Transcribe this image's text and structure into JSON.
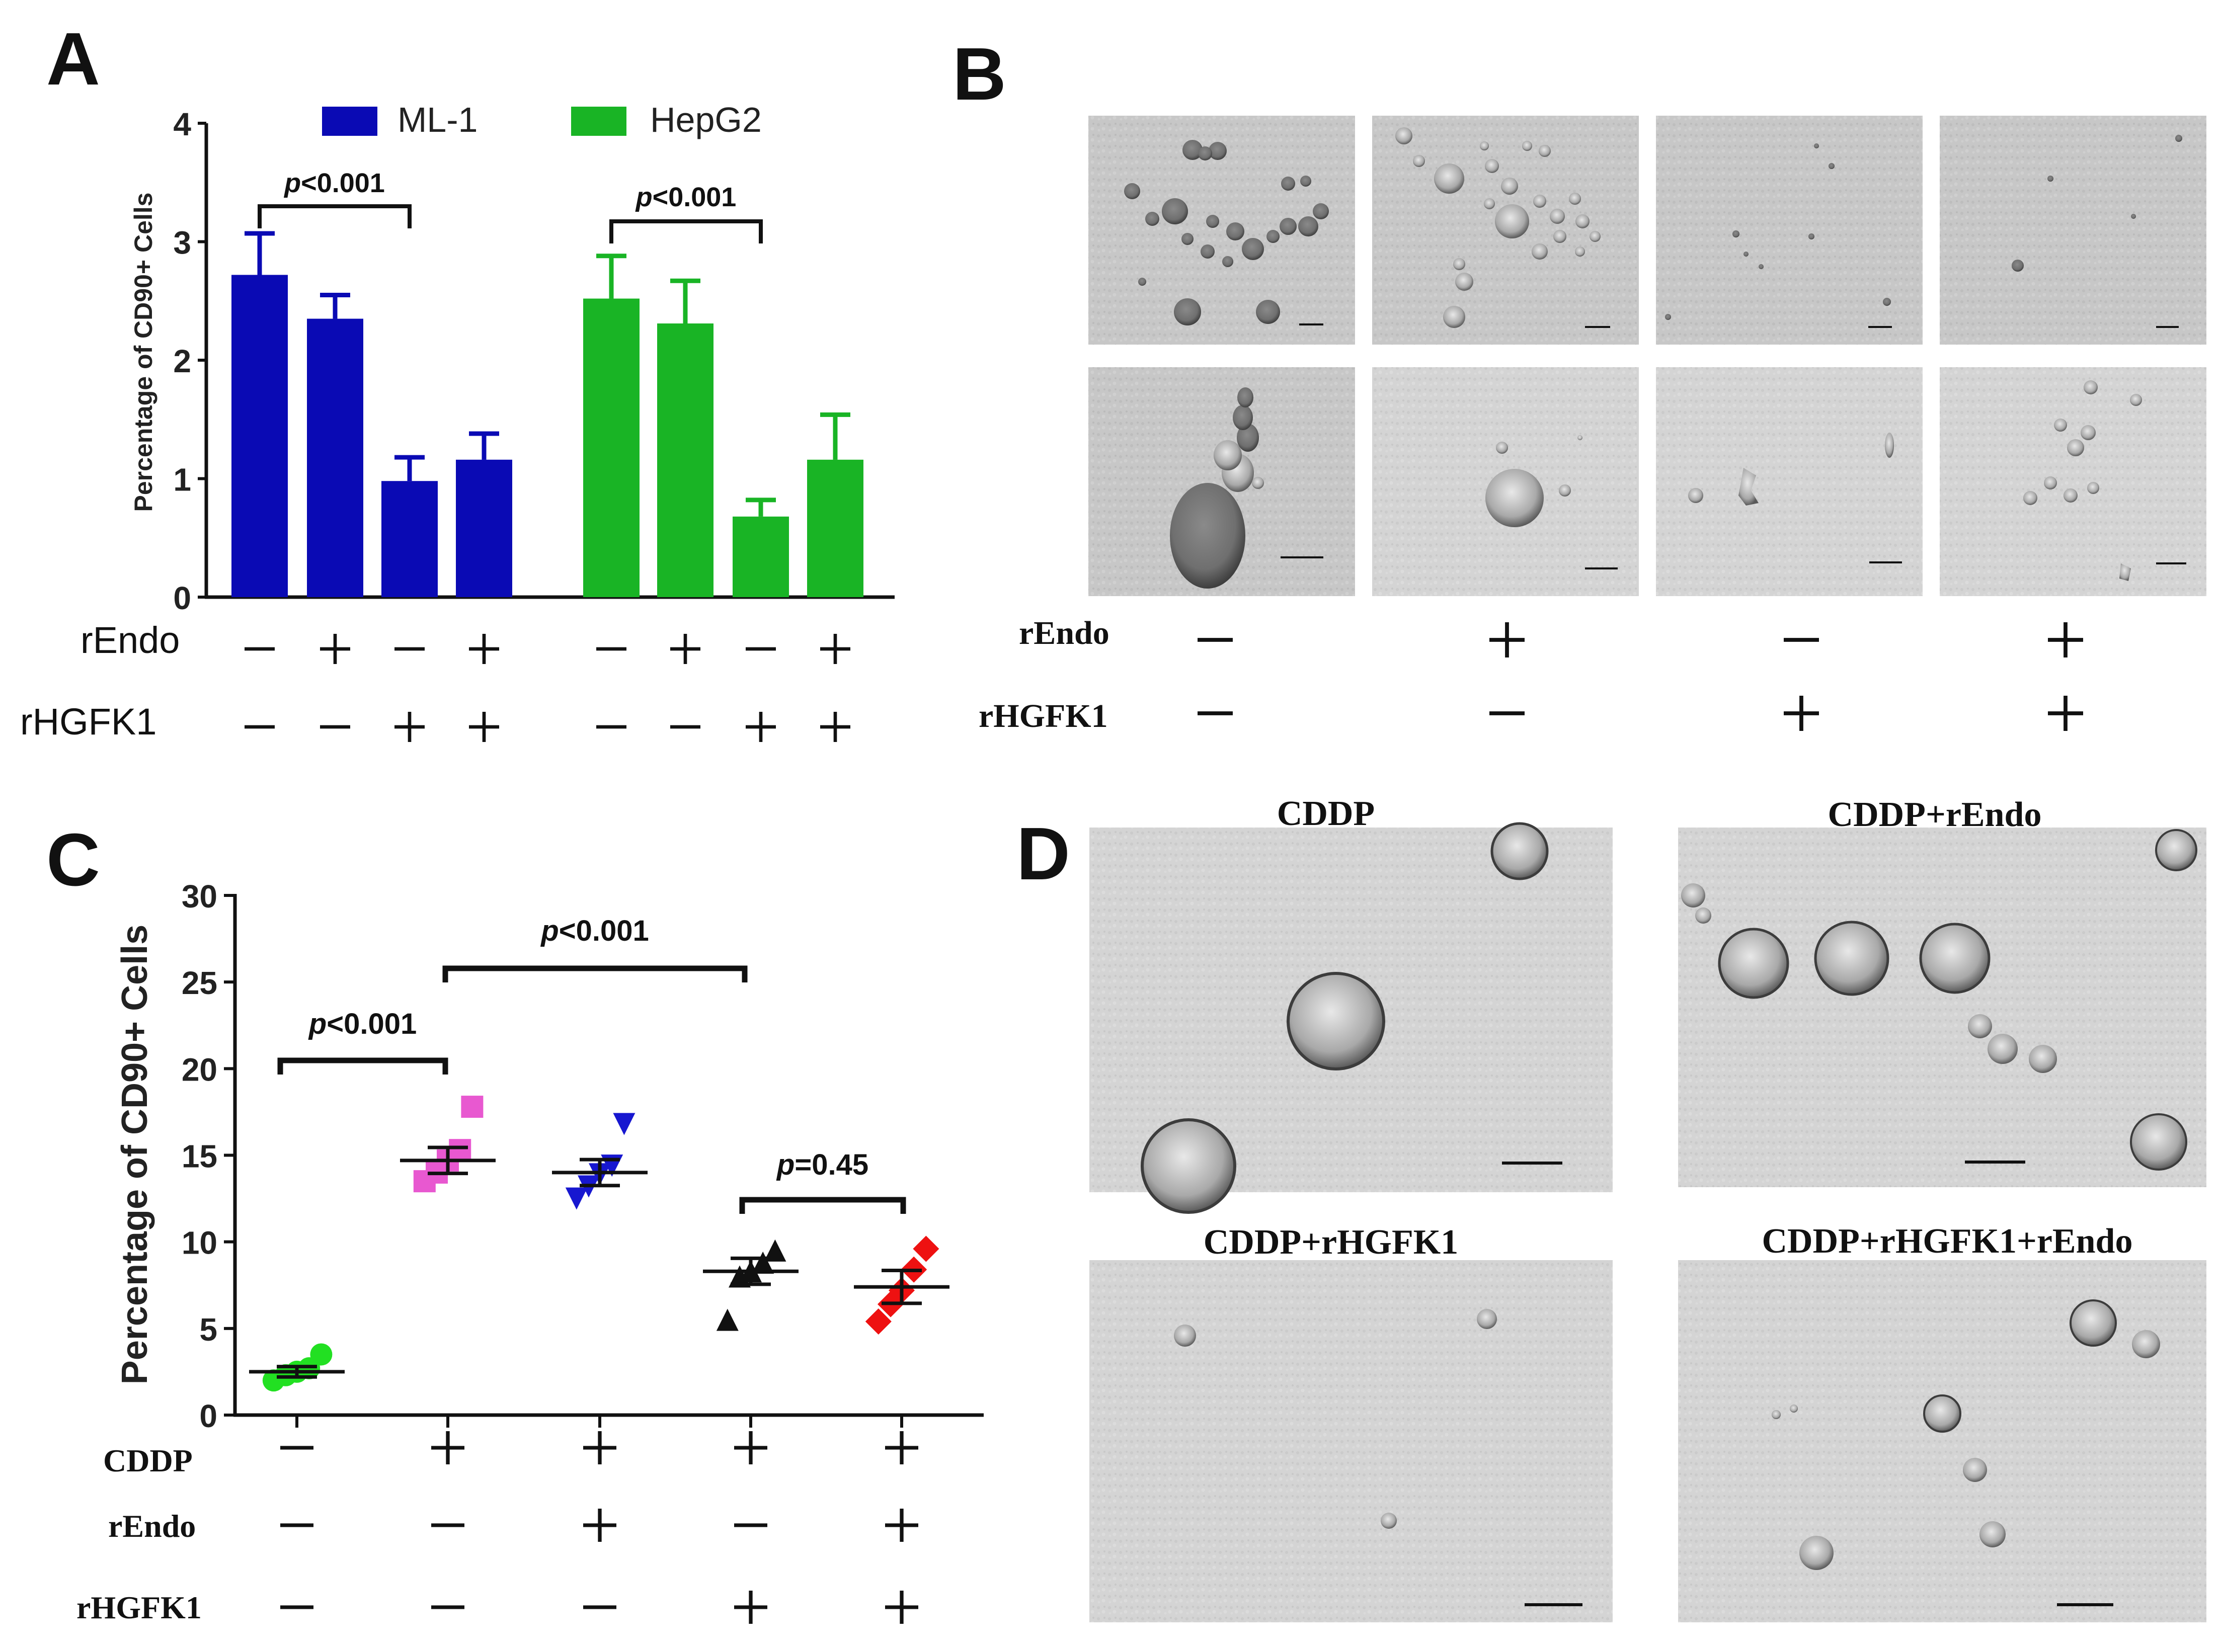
{
  "panels": {
    "A": {
      "letter": "A",
      "ylabel": "Percentage of CD90+ Cells",
      "yticks": [
        "0",
        "1",
        "2",
        "3",
        "4"
      ],
      "legend": [
        {
          "name": "ML-1",
          "color": "#0a0ab4"
        },
        {
          "name": "HepG2",
          "color": "#19b425"
        }
      ],
      "pvalues": [
        {
          "prefix": "p",
          "text": "<0.001"
        },
        {
          "prefix": "p",
          "text": "<0.001"
        }
      ],
      "row_labels": [
        "rEndo",
        "rHGFK1"
      ],
      "rEndo_signs": [
        "−",
        "+",
        "−",
        "+",
        "−",
        "+",
        "−",
        "+"
      ],
      "rHGFK1_signs": [
        "−",
        "−",
        "+",
        "+",
        "−",
        "−",
        "+",
        "+"
      ]
    },
    "B": {
      "letter": "B",
      "row_labels": [
        "rEndo",
        "rHGFK1"
      ],
      "rEndo_signs": [
        "−",
        "+",
        "−",
        "+"
      ],
      "rHGFK1_signs": [
        "−",
        "−",
        "+",
        "+"
      ]
    },
    "C": {
      "letter": "C",
      "ylabel": "Percentage of CD90+ Cells",
      "yticks": [
        "0",
        "5",
        "10",
        "15",
        "20",
        "25",
        "30"
      ],
      "pvalues": [
        {
          "prefix": "p",
          "text": "<0.001"
        },
        {
          "prefix": "p",
          "text": "<0.001"
        },
        {
          "prefix": "p",
          "text": "=0.45"
        }
      ],
      "row_labels": [
        "CDDP",
        "rEndo",
        "rHGFK1"
      ],
      "CDDP_signs": [
        "−",
        "+",
        "+",
        "+",
        "+"
      ],
      "rEndo_signs": [
        "−",
        "−",
        "+",
        "−",
        "+"
      ],
      "rHGFK1_signs": [
        "−",
        "−",
        "−",
        "+",
        "+"
      ]
    },
    "D": {
      "letter": "D",
      "titles": [
        "CDDP",
        "CDDP+rEndo",
        "CDDP+rHGFK1",
        "CDDP+rHGFK1+rEndo"
      ]
    }
  },
  "chart_data": [
    {
      "type": "bar",
      "ylabel": "Percentage of CD90+ Cells",
      "ylim": [
        0,
        4
      ],
      "legend_position": "top",
      "series": [
        {
          "name": "ML-1",
          "color": "#0a0ab4",
          "values": [
            2.72,
            2.35,
            0.98,
            1.16
          ],
          "errors": [
            0.35,
            0.2,
            0.2,
            0.22
          ]
        },
        {
          "name": "HepG2",
          "color": "#19b425",
          "values": [
            2.52,
            2.31,
            0.68,
            1.16
          ],
          "errors": [
            0.36,
            0.36,
            0.14,
            0.38
          ]
        }
      ],
      "comparisons": [
        {
          "series": "ML-1",
          "between": [
            1,
            3
          ],
          "label": "p<0.001"
        },
        {
          "series": "HepG2",
          "between": [
            1,
            3
          ],
          "label": "p<0.001"
        }
      ]
    },
    {
      "type": "scatter",
      "ylabel": "Percentage of CD90+ Cells",
      "ylim": [
        0,
        30
      ],
      "groups": [
        {
          "color": "#22e022",
          "marker": "circle",
          "points": [
            2.0,
            2.3,
            2.5,
            2.7,
            3.5
          ],
          "mean": 2.5,
          "sem": 0.3
        },
        {
          "color": "#e858d0",
          "marker": "square",
          "points": [
            13.5,
            14.0,
            14.7,
            15.3,
            17.8
          ],
          "mean": 14.7,
          "sem": 0.75
        },
        {
          "color": "#1717d0",
          "marker": "triangle-down",
          "points": [
            12.5,
            13.2,
            13.9,
            14.4,
            16.8
          ],
          "mean": 14.0,
          "sem": 0.75
        },
        {
          "color": "#111111",
          "marker": "triangle",
          "points": [
            5.5,
            8.0,
            8.3,
            8.8,
            9.5
          ],
          "mean": 8.3,
          "sem": 0.75
        },
        {
          "color": "#ee1111",
          "marker": "diamond",
          "points": [
            5.4,
            6.4,
            7.2,
            8.4,
            9.6
          ],
          "mean": 7.4,
          "sem": 0.95
        }
      ],
      "comparisons": [
        {
          "between": [
            1,
            2
          ],
          "label": "p<0.001"
        },
        {
          "between": [
            2,
            4
          ],
          "label": "p<0.001"
        },
        {
          "between": [
            4,
            5
          ],
          "label": "p=0.45"
        }
      ]
    }
  ]
}
